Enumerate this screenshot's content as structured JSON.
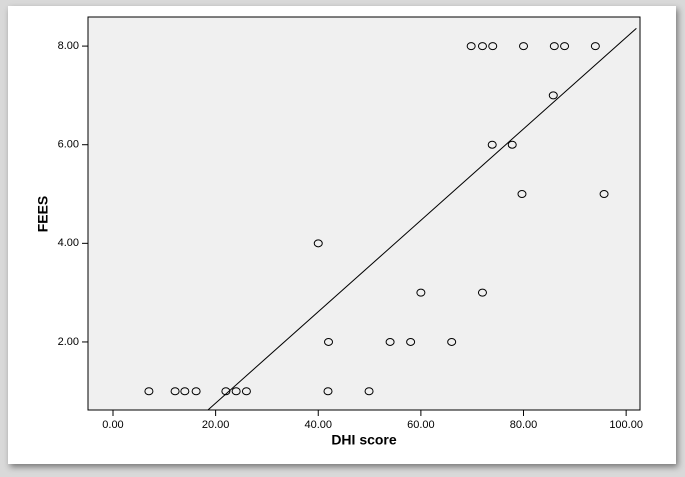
{
  "chart_data": {
    "type": "scatter",
    "x_label": "DHI score",
    "y_label": "FEES",
    "x": [
      7,
      12.1,
      14,
      16.2,
      22,
      24,
      26,
      41.9,
      49.9,
      42,
      54,
      58,
      66,
      60,
      72,
      40,
      79.7,
      95.7,
      73.9,
      77.8,
      85.8,
      69.8,
      72,
      74,
      80,
      86,
      88,
      94
    ],
    "y": [
      1,
      1,
      1,
      1,
      1,
      1,
      1,
      1,
      1,
      2,
      2,
      2,
      2,
      3,
      3,
      4,
      5,
      5,
      6,
      6,
      7,
      8,
      8,
      8,
      8,
      8,
      8,
      8
    ],
    "regression_line": {
      "x": [
        18.5,
        102
      ],
      "y": [
        0.62,
        8.36
      ]
    },
    "xlim": [
      -4.87,
      102.7
    ],
    "ylim": [
      0.62,
      8.59
    ],
    "xticks": [
      {
        "value": 0,
        "label": "0.00"
      },
      {
        "value": 20,
        "label": "20.00"
      },
      {
        "value": 40,
        "label": "40.00"
      },
      {
        "value": 60,
        "label": "60.00"
      },
      {
        "value": 80,
        "label": "80.00"
      },
      {
        "value": 100,
        "label": "100.00"
      }
    ],
    "yticks": [
      {
        "value": 2,
        "label": "2.00"
      },
      {
        "value": 4,
        "label": "4.00"
      },
      {
        "value": 6,
        "label": "6.00"
      },
      {
        "value": 8,
        "label": "8.00"
      }
    ],
    "background": "#f0f0f0",
    "marker_color": "#000000"
  }
}
